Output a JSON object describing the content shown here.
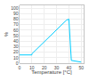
{
  "chart_data": {
    "type": "line",
    "x": [
      0,
      10,
      10,
      38,
      40,
      42,
      50
    ],
    "values": [
      15,
      15,
      17,
      78,
      80,
      5,
      2
    ],
    "color": "#00ccff",
    "xlabel": "Temperature [°C]",
    "ylabel": "%",
    "xlim": [
      0,
      52
    ],
    "ylim": [
      0,
      105
    ],
    "xticks": [
      0,
      10,
      20,
      30,
      40,
      50
    ],
    "yticks": [
      0,
      10,
      20,
      30,
      40,
      50,
      60,
      70,
      80,
      90,
      100
    ],
    "grid": true
  }
}
